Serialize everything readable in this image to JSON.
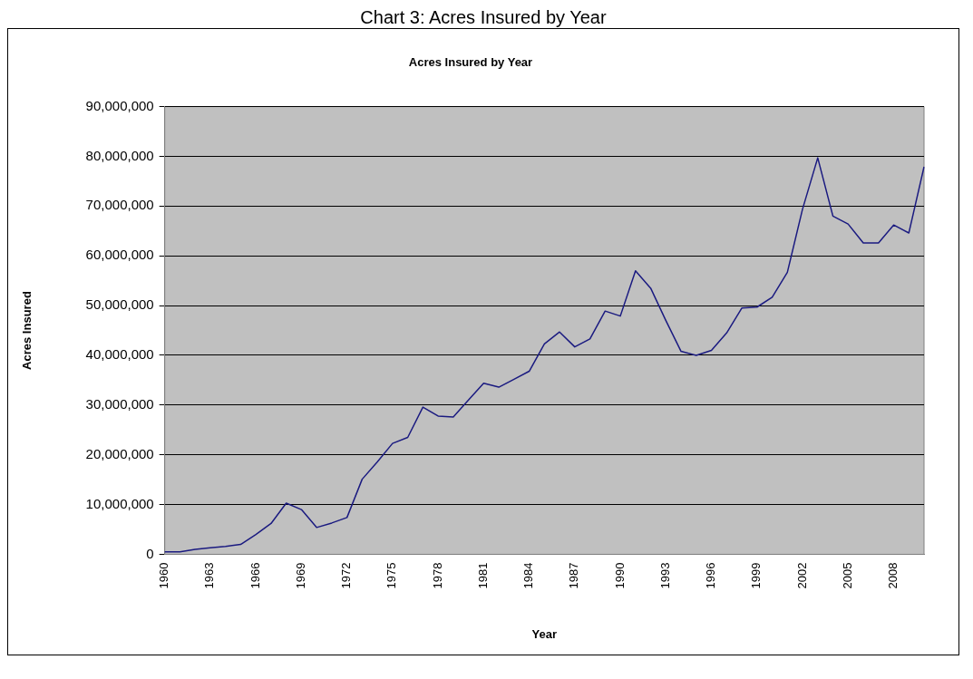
{
  "chart_data": {
    "type": "line",
    "title": "Acres Insured by Year",
    "xlabel": "Year",
    "ylabel": "Acres Insured",
    "annotations": [
      "Chart 3: Acres Insured by Year"
    ],
    "categories": [
      "1960",
      null,
      null,
      "1963",
      null,
      null,
      "1966",
      null,
      null,
      "1969",
      null,
      null,
      "1972",
      null,
      null,
      "1975",
      null,
      null,
      "1978",
      null,
      null,
      "1981",
      null,
      null,
      "1984",
      null,
      null,
      "1987",
      null,
      null,
      "1990",
      null,
      null,
      "1993",
      null,
      null,
      "1996",
      null,
      null,
      "1999",
      null,
      null,
      "2002",
      null,
      null,
      "2005",
      null,
      null,
      "2008",
      null,
      null
    ],
    "series": [
      {
        "color": "#1a1a80",
        "values": [
          500000,
          500000,
          1000000,
          1300000,
          1600000,
          2000000,
          4000000,
          6200000,
          10300000,
          9000000,
          5400000,
          6300000,
          7400000,
          15100000,
          18600000,
          22300000,
          23500000,
          29600000,
          27800000,
          27600000,
          31000000,
          34400000,
          33600000,
          35200000,
          36800000,
          42300000,
          44700000,
          41700000,
          43300000,
          48900000,
          47900000,
          57000000,
          53500000,
          47000000,
          40800000,
          40000000,
          41000000,
          44500000,
          49500000,
          49700000,
          51700000,
          56700000,
          69400000,
          79700000,
          68000000,
          66400000,
          62600000,
          62600000,
          66200000,
          64600000,
          77900000
        ]
      }
    ],
    "ylim": [
      0,
      90000000
    ],
    "yticks": [
      0,
      {
        "value": 10000000,
        "label": "10,000,000"
      },
      {
        "value": 20000000,
        "label": "20,000,000"
      },
      {
        "value": 30000000,
        "label": "30,000,000"
      },
      {
        "value": 40000000,
        "label": "40,000,000"
      },
      {
        "value": 50000000,
        "label": "50,000,000"
      },
      {
        "value": 60000000,
        "label": "60,000,000"
      },
      {
        "value": 70000000,
        "label": "70,000,000"
      },
      {
        "value": 80000000,
        "label": "80,000,000"
      },
      {
        "value": 90000000,
        "label": "90,000,000"
      }
    ],
    "grid": "y",
    "legend": false,
    "marker": "none",
    "line_style": "solid"
  }
}
